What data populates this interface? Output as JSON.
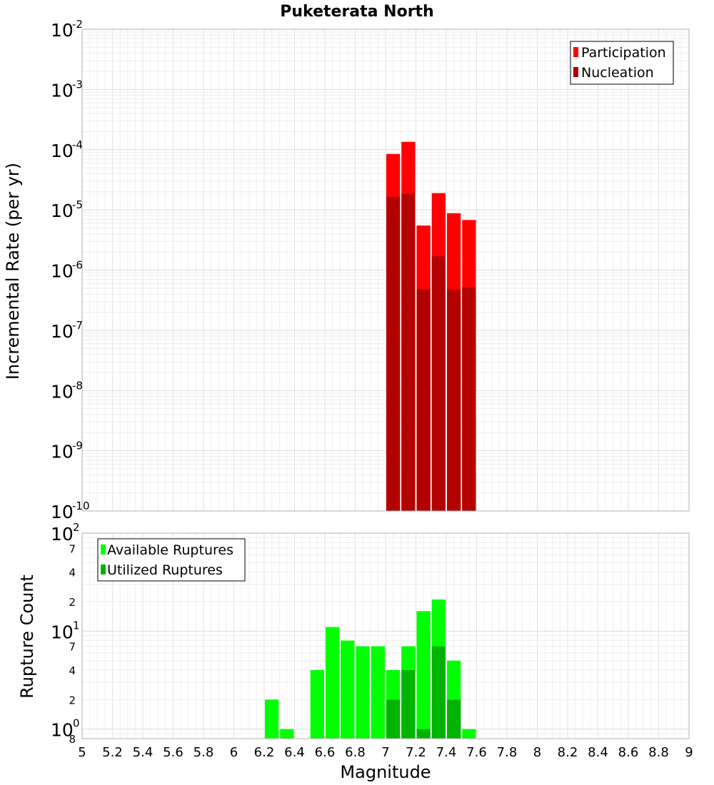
{
  "chart_data": [
    {
      "type": "bar",
      "title": "Puketerata North",
      "ylabel": "Incremental Rate (per yr)",
      "yscale": "log",
      "ylim": [
        1e-10,
        0.01
      ],
      "xlim": [
        5,
        9
      ],
      "bar_width": 0.1,
      "legend_position": "top-right",
      "series": [
        {
          "name": "Participation",
          "color": "#ff0000",
          "x": [
            7.05,
            7.15,
            7.25,
            7.35,
            7.45,
            7.55
          ],
          "values": [
            8.5e-05,
            0.000135,
            5.5e-06,
            1.9e-05,
            8.8e-06,
            6.8e-06
          ]
        },
        {
          "name": "Nucleation",
          "color": "#b30000",
          "x": [
            7.05,
            7.15,
            7.25,
            7.35,
            7.45,
            7.55
          ],
          "values": [
            1.65e-05,
            1.85e-05,
            4.8e-07,
            1.7e-06,
            4.8e-07,
            5.2e-07
          ]
        }
      ]
    },
    {
      "type": "bar",
      "xlabel": "Magnitude",
      "ylabel": "Rupture Count",
      "yscale": "log",
      "ylim": [
        0.8,
        100
      ],
      "xlim": [
        5,
        9
      ],
      "bar_width": 0.1,
      "legend_position": "top-left",
      "series": [
        {
          "name": "Available Ruptures",
          "color": "#00ff00",
          "x": [
            6.25,
            6.35,
            6.55,
            6.65,
            6.75,
            6.85,
            6.95,
            7.05,
            7.15,
            7.25,
            7.35,
            7.45,
            7.55
          ],
          "values": [
            2,
            1,
            4,
            11,
            8,
            7,
            7,
            4,
            7,
            16,
            21,
            5,
            1
          ]
        },
        {
          "name": "Utilized Ruptures",
          "color": "#00b300",
          "x": [
            7.05,
            7.15,
            7.25,
            7.35,
            7.45
          ],
          "values": [
            2,
            4,
            1,
            7,
            2
          ]
        }
      ]
    }
  ],
  "axes": {
    "x_ticks": [
      "5",
      "5.2",
      "5.4",
      "5.6",
      "5.8",
      "6",
      "6.2",
      "6.4",
      "6.6",
      "6.8",
      "7",
      "7.2",
      "7.4",
      "7.6",
      "7.8",
      "8",
      "8.2",
      "8.4",
      "8.6",
      "8.8",
      "9"
    ],
    "top_y_decade_base": "10",
    "top_y_decade_exponents": [
      "-2",
      "-3",
      "-4",
      "-5",
      "-6",
      "-7",
      "-8",
      "-9",
      "-10"
    ],
    "bottom_y_decade_base": "10",
    "bottom_y_decade_exponents": [
      "2",
      "1",
      "0"
    ],
    "bottom_y_minor_labels": [
      "7",
      "4",
      "2",
      "7",
      "4",
      "2",
      "8"
    ]
  }
}
